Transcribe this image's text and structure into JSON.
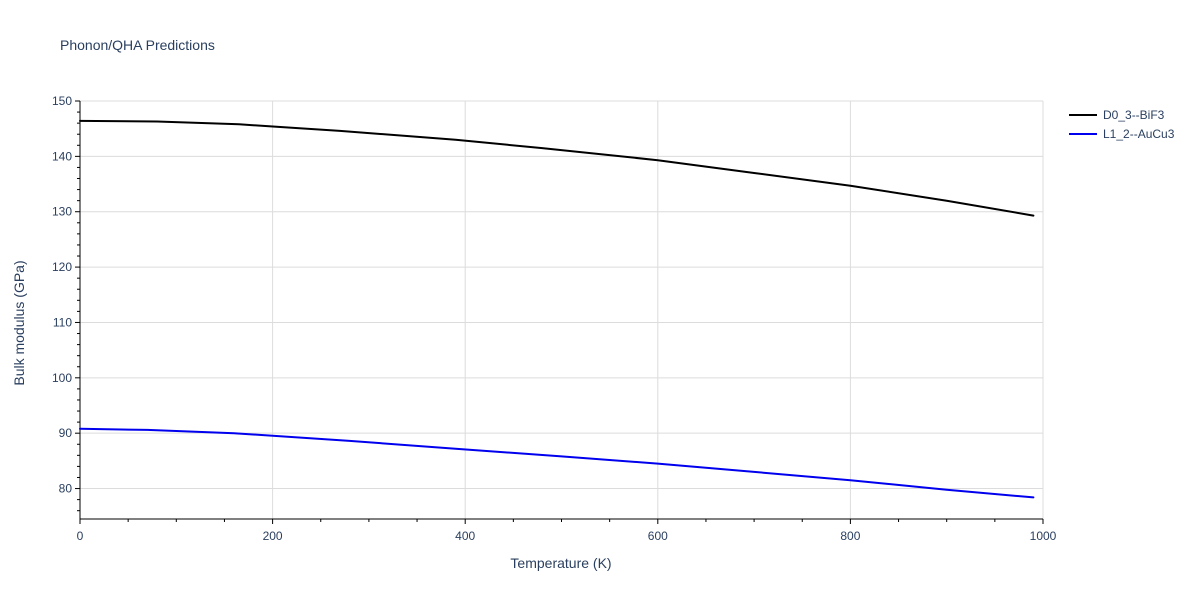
{
  "chart_data": {
    "type": "line",
    "title": "Phonon/QHA Predictions",
    "xlabel": "Temperature (K)",
    "ylabel": "Bulk modulus (GPa)",
    "xlim": [
      0,
      1000
    ],
    "ylim": [
      74.5,
      150
    ],
    "xticks": [
      0,
      200,
      400,
      600,
      800,
      1000
    ],
    "yticks": [
      80,
      90,
      100,
      110,
      120,
      130,
      140,
      150
    ],
    "grid": true,
    "legend_position": "top-right",
    "series": [
      {
        "name": "D0_3--BiF3",
        "color": "#000000",
        "x": [
          0,
          80,
          165,
          270,
          390,
          480,
          600,
          700,
          800,
          900,
          990
        ],
        "y": [
          146.4,
          146.3,
          145.8,
          144.6,
          143.0,
          141.5,
          139.3,
          137.0,
          134.7,
          132.0,
          129.3
        ]
      },
      {
        "name": "L1_2--AuCu3",
        "color": "#0000ee",
        "x": [
          0,
          70,
          160,
          280,
          390,
          500,
          600,
          700,
          800,
          900,
          990
        ],
        "y": [
          90.8,
          90.6,
          90.0,
          88.6,
          87.2,
          85.8,
          84.5,
          83.0,
          81.5,
          79.8,
          78.4
        ]
      }
    ]
  }
}
